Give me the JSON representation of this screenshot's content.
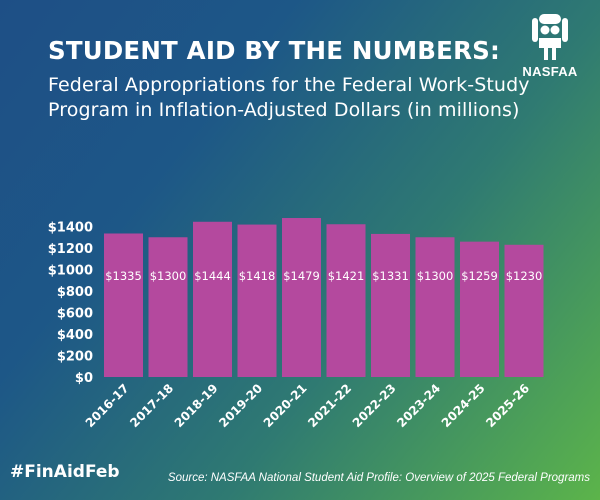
{
  "header": {
    "title": "STUDENT AID BY THE NUMBERS:",
    "subtitle_line1": "Federal Appropriations for the Federal Work-Study",
    "subtitle_line2": "Program in Inflation-Adjusted Dollars (in millions)"
  },
  "logo": {
    "text": "NASFAA",
    "icon": "nasfaa-people-icon"
  },
  "footer": {
    "hashtag": "#FinAidFeb",
    "source": "Source: NASFAA National Student Aid Profile: Overview of 2025 Federal Programs"
  },
  "colors": {
    "bar": "#b4499e",
    "text": "#ffffff"
  },
  "chart_data": {
    "type": "bar",
    "categories": [
      "2016-17",
      "2017-18",
      "2018-19",
      "2019-20",
      "2020-21",
      "2021-22",
      "2022-23",
      "2023-24",
      "2024-25",
      "2025-26"
    ],
    "values": [
      1335,
      1300,
      1444,
      1418,
      1479,
      1421,
      1331,
      1300,
      1259,
      1230
    ],
    "data_labels": [
      "$1335",
      "$1300",
      "$1444",
      "$1418",
      "$1479",
      "$1421",
      "$1331",
      "$1300",
      "$1259",
      "$1230"
    ],
    "y_ticks": [
      0,
      200,
      400,
      600,
      800,
      1000,
      1200,
      1400
    ],
    "y_tick_labels": [
      "$0",
      "$200",
      "$400",
      "$600",
      "$800",
      "$1000",
      "$1200",
      "$1400"
    ],
    "ylim": [
      0,
      1500
    ],
    "grid": false,
    "legend": "none"
  }
}
